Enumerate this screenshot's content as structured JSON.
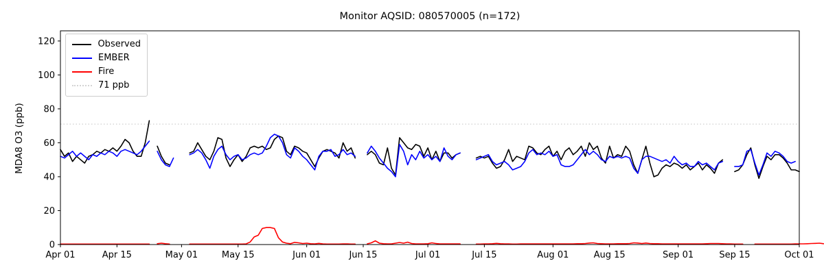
{
  "figure": {
    "background": "#ffffff"
  },
  "chart_data": {
    "type": "line",
    "title": "Monitor AQSID: 080570005 (n=172)",
    "ylabel": "MDA8 O3 (ppb)",
    "xlabel": "",
    "grid": false,
    "legend_position": "upper left",
    "ylim": [
      0,
      126
    ],
    "yticks": [
      0,
      20,
      40,
      60,
      80,
      100,
      120
    ],
    "x_range_days": [
      0,
      183
    ],
    "x_units": "daily values, Apr 01 through Oct 01",
    "xticks": [
      {
        "label": "Apr 01",
        "day": 0
      },
      {
        "label": "Apr 15",
        "day": 14
      },
      {
        "label": "May 01",
        "day": 30
      },
      {
        "label": "May 15",
        "day": 44
      },
      {
        "label": "Jun 01",
        "day": 61
      },
      {
        "label": "Jun 15",
        "day": 75
      },
      {
        "label": "Jul 01",
        "day": 91
      },
      {
        "label": "Jul 15",
        "day": 105
      },
      {
        "label": "Aug 01",
        "day": 122
      },
      {
        "label": "Aug 15",
        "day": 136
      },
      {
        "label": "Sep 01",
        "day": 153
      },
      {
        "label": "Sep 15",
        "day": 167
      },
      {
        "label": "Oct 01",
        "day": 183
      }
    ],
    "threshold": {
      "label": "71 ppb",
      "value": 71,
      "color": "#d3d3d3",
      "line_style": "dotted"
    },
    "series": [
      {
        "name": "Observed",
        "color": "#000000",
        "line_style": "solid",
        "values": [
          56,
          52,
          54,
          49,
          52,
          50,
          48,
          52,
          53,
          55,
          54,
          56,
          55,
          57,
          55,
          58,
          62,
          60,
          55,
          52,
          52,
          60,
          73,
          null,
          58,
          52,
          48,
          47,
          null,
          null,
          null,
          null,
          54,
          55,
          60,
          56,
          52,
          50,
          55,
          63,
          62,
          51,
          46,
          50,
          53,
          49,
          52,
          57,
          58,
          57,
          58,
          56,
          57,
          62,
          64,
          63,
          55,
          53,
          58,
          57,
          55,
          54,
          50,
          46,
          51,
          55,
          56,
          55,
          54,
          51,
          60,
          55,
          57,
          51,
          null,
          null,
          53,
          55,
          53,
          48,
          47,
          57,
          45,
          41,
          63,
          60,
          57,
          56,
          59,
          58,
          52,
          57,
          50,
          55,
          49,
          54,
          54,
          51,
          53,
          54,
          null,
          null,
          null,
          51,
          52,
          51,
          52,
          48,
          45,
          46,
          50,
          56,
          49,
          52,
          51,
          50,
          58,
          57,
          54,
          53,
          56,
          58,
          52,
          55,
          50,
          55,
          57,
          53,
          55,
          58,
          52,
          60,
          56,
          58,
          51,
          48,
          58,
          51,
          53,
          52,
          58,
          55,
          47,
          42,
          50,
          58,
          48,
          40,
          41,
          45,
          47,
          46,
          48,
          47,
          45,
          47,
          44,
          46,
          48,
          44,
          47,
          45,
          42,
          48,
          50,
          null,
          null,
          43,
          44,
          47,
          53,
          57,
          47,
          39,
          46,
          52,
          50,
          53,
          53,
          51,
          48,
          44,
          44,
          43
        ]
      },
      {
        "name": "EMBER",
        "color": "#0000ff",
        "line_style": "solid",
        "values": [
          52,
          51,
          53,
          55,
          52,
          54,
          52,
          50,
          53,
          52,
          54,
          53,
          55,
          54,
          52,
          55,
          56,
          55,
          54,
          53,
          55,
          58,
          61,
          null,
          55,
          50,
          47,
          46,
          51,
          null,
          null,
          null,
          53,
          54,
          56,
          54,
          50,
          45,
          52,
          56,
          58,
          53,
          50,
          52,
          53,
          50,
          51,
          53,
          54,
          53,
          54,
          58,
          63,
          65,
          64,
          60,
          53,
          51,
          57,
          55,
          52,
          50,
          47,
          44,
          52,
          55,
          55,
          56,
          52,
          53,
          56,
          53,
          54,
          52,
          null,
          null,
          54,
          58,
          55,
          51,
          48,
          45,
          43,
          40,
          59,
          55,
          47,
          53,
          50,
          55,
          51,
          53,
          50,
          52,
          49,
          57,
          52,
          50,
          53,
          54,
          null,
          null,
          null,
          50,
          51,
          52,
          53,
          49,
          47,
          48,
          49,
          47,
          44,
          45,
          46,
          49,
          54,
          56,
          53,
          54,
          53,
          55,
          52,
          53,
          47,
          46,
          46,
          47,
          50,
          53,
          56,
          53,
          55,
          53,
          50,
          49,
          52,
          51,
          52,
          51,
          52,
          51,
          45,
          42,
          50,
          52,
          52,
          51,
          50,
          49,
          50,
          48,
          52,
          49,
          47,
          48,
          46,
          46,
          49,
          47,
          48,
          46,
          44,
          48,
          49,
          null,
          null,
          46,
          46,
          47,
          55,
          56,
          48,
          41,
          47,
          54,
          52,
          55,
          54,
          52,
          49,
          48,
          49,
          null
        ]
      },
      {
        "name": "Fire",
        "color": "#ff0000",
        "line_style": "solid",
        "values": [
          0.3,
          0.3,
          0.3,
          0.3,
          0.3,
          0.3,
          0.3,
          0.3,
          0.3,
          0.3,
          0.3,
          0.3,
          0.3,
          0.3,
          0.3,
          0.3,
          0.3,
          0.3,
          0.3,
          0.3,
          0.3,
          0.3,
          0.3,
          null,
          0.5,
          0.8,
          0.5,
          0.3,
          null,
          null,
          null,
          null,
          0.3,
          0.3,
          0.3,
          0.3,
          0.3,
          0.3,
          0.3,
          0.3,
          0.3,
          0.3,
          0.3,
          0.3,
          0.3,
          0.3,
          0.4,
          1.5,
          4.5,
          5.5,
          9.5,
          10,
          10,
          9.5,
          4,
          1.5,
          0.8,
          0.5,
          1.3,
          1,
          0.6,
          0.8,
          0.5,
          0.4,
          0.7,
          0.4,
          0.3,
          0.3,
          0.3,
          0.3,
          0.4,
          0.4,
          0.3,
          0.3,
          null,
          null,
          0.4,
          1,
          2.2,
          0.8,
          0.5,
          0.4,
          0.4,
          0.8,
          1.2,
          0.8,
          1.4,
          0.6,
          0.4,
          0.4,
          0.4,
          0.5,
          1,
          0.6,
          0.4,
          0.4,
          0.4,
          0.4,
          0.4,
          0.4,
          null,
          null,
          null,
          0.3,
          0.3,
          0.4,
          0.4,
          0.5,
          0.7,
          0.5,
          0.4,
          0.4,
          0.3,
          0.3,
          0.4,
          0.4,
          0.4,
          0.4,
          0.4,
          0.4,
          0.4,
          0.4,
          0.4,
          0.4,
          0.4,
          0.4,
          0.4,
          0.4,
          0.5,
          0.5,
          0.6,
          0.9,
          1,
          0.6,
          0.5,
          0.4,
          0.4,
          0.4,
          0.5,
          0.5,
          0.5,
          0.6,
          1,
          0.9,
          0.6,
          0.9,
          0.6,
          0.5,
          0.5,
          0.4,
          0.4,
          0.4,
          0.4,
          0.4,
          0.4,
          0.4,
          0.4,
          0.4,
          0.4,
          0.4,
          0.5,
          0.6,
          0.6,
          0.6,
          0.5,
          0.4,
          0.4,
          0.3,
          0.3,
          0.3,
          null,
          null,
          0.3,
          0.3,
          0.3,
          0.3,
          0.3,
          0.3,
          0.3,
          0.3,
          0.3,
          0.3,
          0.4,
          0.4,
          0.4,
          0.5,
          0.6,
          0.7,
          0.8,
          0.5
        ]
      }
    ]
  }
}
